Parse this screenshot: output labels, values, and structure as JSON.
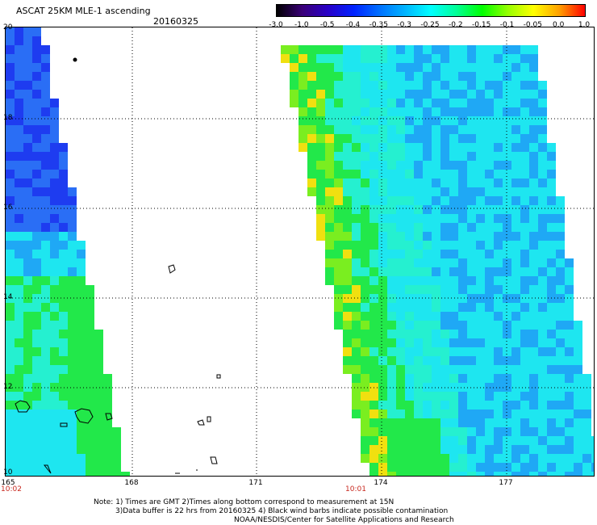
{
  "header": {
    "title": "ASCAT 25KM MLE-1 ascending",
    "date": "20160325"
  },
  "colorbar": {
    "labels": [
      "-3.0",
      "-1.0",
      "-0.5",
      "-0.4",
      "-0.35",
      "-0.3",
      "-0.25",
      "-0.2",
      "-0.15",
      "-0.1",
      "-0.05",
      "0.0",
      "1.0"
    ],
    "colors": [
      "#000000",
      "#3a0078",
      "#2800c8",
      "#0022ff",
      "#0070ff",
      "#00b4ff",
      "#00ffff",
      "#00ff96",
      "#00ff00",
      "#96ff00",
      "#ffff00",
      "#ffa000",
      "#ff0000"
    ]
  },
  "map": {
    "lat_labels": [
      "20",
      "18",
      "16",
      "14",
      "12",
      "10"
    ],
    "lon_labels": [
      "165",
      "168",
      "171",
      "174",
      "177"
    ],
    "time_labels": [
      "10:02",
      "10:01"
    ],
    "time_color": "#c8281e"
  },
  "notes": {
    "line1": "Note: 1) Times are GMT 2)Times along bottom correspond to measurement at 15N",
    "line2": "3)Data buffer is 22 hrs from 20160325 4) Black wind barbs indicate possible contamination",
    "line3": "NOAA/NESDIS/Center for Satellite Applications and Research"
  }
}
